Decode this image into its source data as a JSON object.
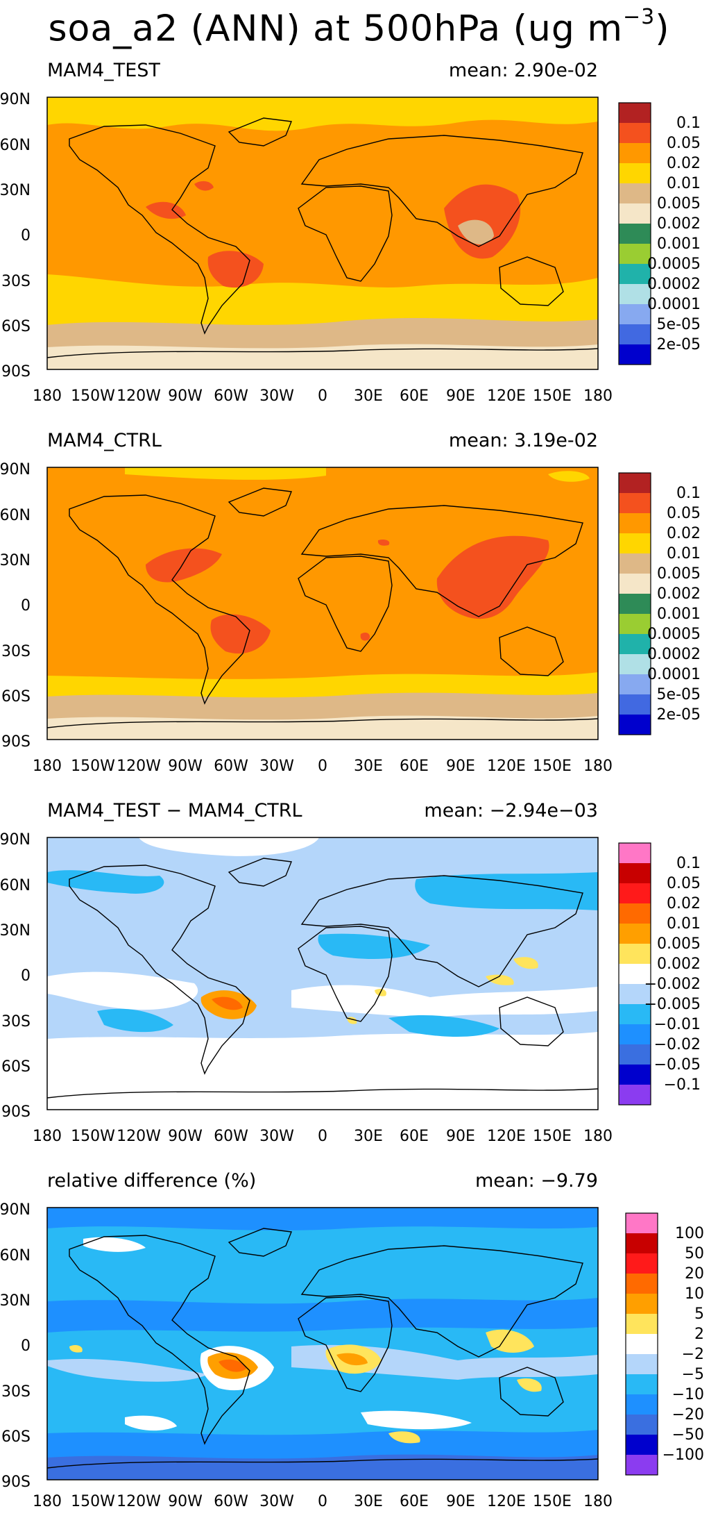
{
  "title": {
    "main": "soa_a2 (ANN) at 500hPa (ug m",
    "superscript": "−3",
    "suffix": ")"
  },
  "axes": {
    "lat_ticks": [
      "90N",
      "60N",
      "30N",
      "0",
      "30S",
      "60S",
      "90S"
    ],
    "lon_ticks": [
      "180",
      "150W",
      "120W",
      "90W",
      "60W",
      "30W",
      "0",
      "30E",
      "60E",
      "90E",
      "120E",
      "150E",
      "180"
    ]
  },
  "panels": [
    {
      "id": "test",
      "left_label": "MAM4_TEST",
      "right_label": "mean: 2.90e-02",
      "levels": [
        "0.1",
        "0.05",
        "0.02",
        "0.01",
        "0.005",
        "0.002",
        "0.001",
        "0.0005",
        "0.0002",
        "0.0001",
        "5e-05",
        "2e-05"
      ],
      "colors": [
        "#b22222",
        "#f4511e",
        "#ff9800",
        "#ffd600",
        "#deb887",
        "#f5e6c8",
        "#2e8b57",
        "#9acd32",
        "#20b2aa",
        "#b0e0e6",
        "#87a9f0",
        "#4169e1",
        "#0000cd"
      ]
    },
    {
      "id": "ctrl",
      "left_label": "MAM4_CTRL",
      "right_label": "mean: 3.19e-02",
      "levels": [
        "0.1",
        "0.05",
        "0.02",
        "0.01",
        "0.005",
        "0.002",
        "0.001",
        "0.0005",
        "0.0002",
        "0.0001",
        "5e-05",
        "2e-05"
      ],
      "colors": [
        "#b22222",
        "#f4511e",
        "#ff9800",
        "#ffd600",
        "#deb887",
        "#f5e6c8",
        "#2e8b57",
        "#9acd32",
        "#20b2aa",
        "#b0e0e6",
        "#87a9f0",
        "#4169e1",
        "#0000cd"
      ]
    },
    {
      "id": "diff",
      "left_label": "MAM4_TEST − MAM4_CTRL",
      "right_label": "mean: −2.94e−03",
      "levels": [
        "0.1",
        "0.05",
        "0.02",
        "0.01",
        "0.005",
        "0.002",
        "−0.002",
        "−0.005",
        "−0.01",
        "−0.02",
        "−0.05",
        "−0.1"
      ],
      "colors": [
        "#ff77c6",
        "#c80000",
        "#ff1a1a",
        "#ff6a00",
        "#ff9f00",
        "#ffe45c",
        "#ffffff",
        "#b4d6fa",
        "#29b9f5",
        "#1e90ff",
        "#3a6fe0",
        "#0000cd",
        "#8b3cf0"
      ]
    },
    {
      "id": "rel",
      "left_label": "relative difference (%)",
      "right_label": "mean: −9.79",
      "levels": [
        "100",
        "50",
        "20",
        "10",
        "5",
        "2",
        "−2",
        "−5",
        "−10",
        "−20",
        "−50",
        "−100"
      ],
      "colors": [
        "#ff77c6",
        "#c80000",
        "#ff1a1a",
        "#ff6a00",
        "#ff9f00",
        "#ffe45c",
        "#ffffff",
        "#b4d6fa",
        "#29b9f5",
        "#1e90ff",
        "#3a6fe0",
        "#0000cd",
        "#8b3cf0"
      ]
    }
  ]
}
